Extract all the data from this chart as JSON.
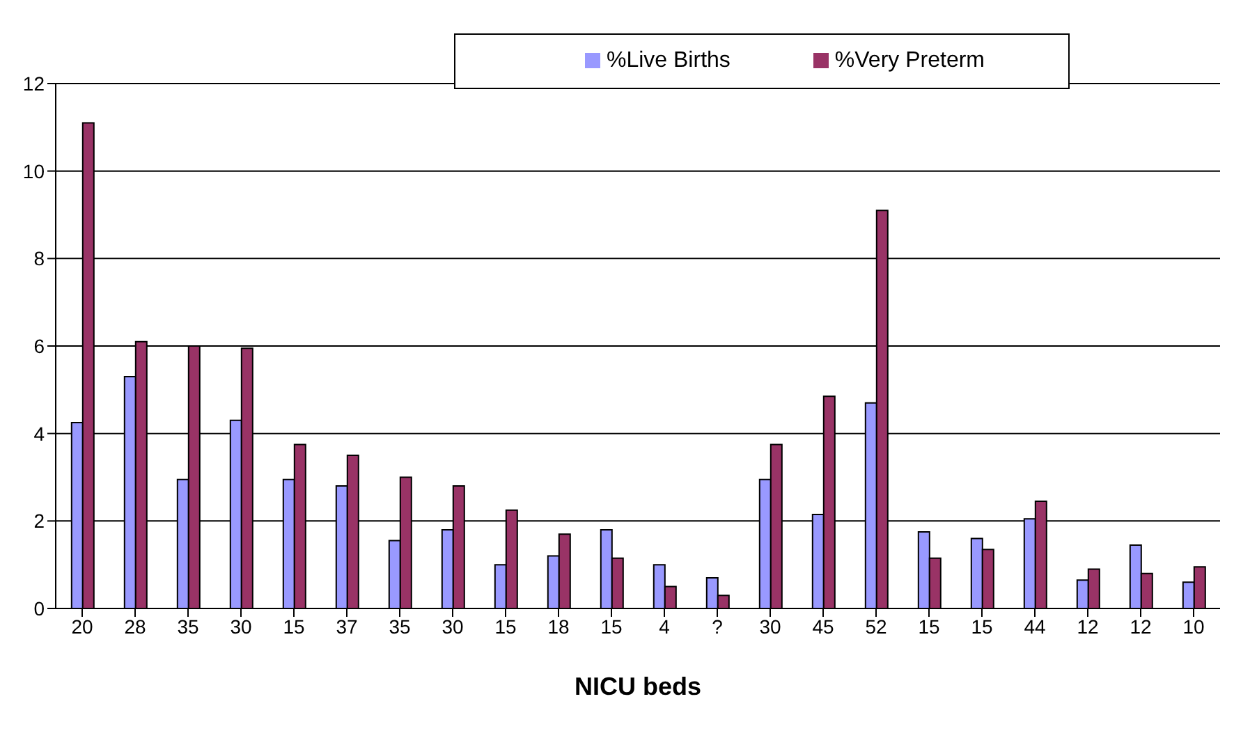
{
  "chart_data": {
    "type": "bar",
    "xlabel": "NICU beds",
    "categories": [
      "20",
      "28",
      "35",
      "30",
      "15",
      "37",
      "35",
      "30",
      "15",
      "18",
      "15",
      "4",
      "?",
      "30",
      "45",
      "52",
      "15",
      "15",
      "44",
      "12",
      "12",
      "10"
    ],
    "series": [
      {
        "name": "%Live Births",
        "color": "#9999ff",
        "values": [
          4.25,
          5.3,
          2.95,
          4.3,
          2.95,
          2.8,
          1.55,
          1.8,
          1.0,
          1.2,
          1.8,
          1.0,
          0.7,
          2.95,
          2.15,
          4.7,
          1.75,
          1.6,
          2.05,
          0.65,
          1.45,
          0.6
        ]
      },
      {
        "name": "%Very Preterm",
        "color": "#993366",
        "values": [
          11.1,
          6.1,
          6.0,
          5.95,
          3.75,
          3.5,
          3.0,
          2.8,
          2.25,
          1.7,
          1.15,
          0.5,
          0.3,
          3.75,
          4.85,
          9.1,
          1.15,
          1.35,
          2.45,
          0.9,
          0.8,
          0.95
        ]
      }
    ],
    "ylim": [
      0,
      12
    ],
    "yticks": [
      0,
      2,
      4,
      6,
      8,
      10,
      12
    ],
    "grid": "y",
    "legend": "top right"
  }
}
